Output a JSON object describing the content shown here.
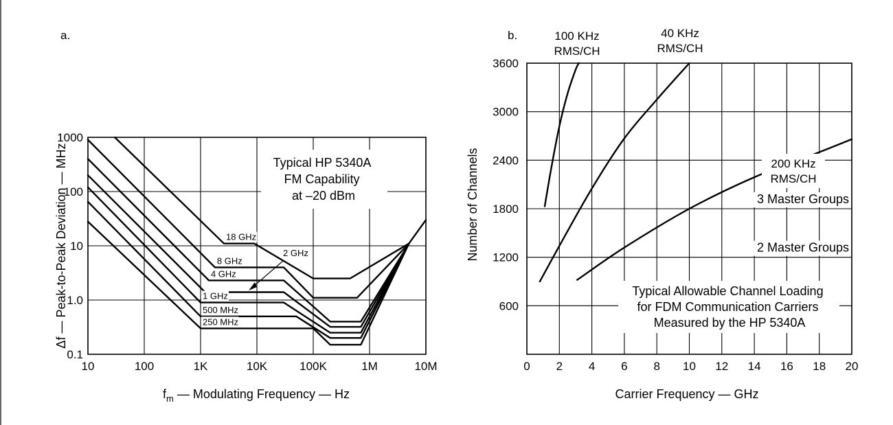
{
  "chart_data": [
    {
      "type": "line",
      "panel_label": "a.",
      "xlabel": "fₘ — Modulating Frequency — Hz",
      "xlabel_main": "f",
      "xlabel_sub": "m",
      "xlabel_rest": " — Modulating Frequency — Hz",
      "ylabel": "Δf — Peak-to-Peak Deviation — MHz",
      "x_scale": "log",
      "y_scale": "log",
      "xlim": [
        10,
        10000000
      ],
      "ylim": [
        0.1,
        1000
      ],
      "grid": true,
      "x_ticks": [
        {
          "value": 10,
          "label": "10"
        },
        {
          "value": 100,
          "label": "100"
        },
        {
          "value": 1000,
          "label": "1K"
        },
        {
          "value": 10000,
          "label": "10K"
        },
        {
          "value": 100000,
          "label": "100K"
        },
        {
          "value": 1000000,
          "label": "1M"
        },
        {
          "value": 10000000,
          "label": "10M"
        }
      ],
      "y_ticks": [
        {
          "value": 0.1,
          "label": "0.1"
        },
        {
          "value": 1,
          "label": "1.0"
        },
        {
          "value": 10,
          "label": "10"
        },
        {
          "value": 100,
          "label": "100"
        },
        {
          "value": 1000,
          "label": "1000"
        }
      ],
      "annotation": [
        "Typical HP 5340A",
        "FM Capability",
        "at –20 dBm"
      ],
      "series": [
        {
          "name": "18 GHz",
          "points": [
            [
              30,
              1000
            ],
            [
              2600,
              11
            ],
            [
              9000,
              11
            ],
            [
              100000,
              2.5
            ],
            [
              450000,
              2.5
            ],
            [
              5000000,
              11
            ]
          ]
        },
        {
          "name": "8 GHz",
          "points": [
            [
              10,
              900
            ],
            [
              1800,
              4
            ],
            [
              30000,
              4
            ],
            [
              100000,
              1.1
            ],
            [
              600000,
              1.1
            ],
            [
              5000000,
              11
            ]
          ]
        },
        {
          "name": "4 GHz",
          "points": [
            [
              10,
              400
            ],
            [
              1400,
              2.3
            ],
            [
              30000,
              2.3
            ],
            [
              200000,
              0.4
            ],
            [
              700000,
              0.4
            ],
            [
              5000000,
              11
            ]
          ]
        },
        {
          "name": "2 GHz",
          "points": [
            [
              10,
              200
            ],
            [
              1200,
              1.4
            ],
            [
              30000,
              1.4
            ],
            [
              200000,
              0.32
            ],
            [
              700000,
              0.32
            ],
            [
              5000000,
              11
            ]
          ]
        },
        {
          "name": "1 GHz",
          "points": [
            [
              10,
              120
            ],
            [
              1000,
              0.9
            ],
            [
              30000,
              0.9
            ],
            [
              200000,
              0.25
            ],
            [
              700000,
              0.25
            ],
            [
              5000000,
              11
            ]
          ]
        },
        {
          "name": "500 MHz",
          "points": [
            [
              10,
              65
            ],
            [
              1000,
              0.5
            ],
            [
              50000,
              0.5
            ],
            [
              200000,
              0.2
            ],
            [
              700000,
              0.2
            ],
            [
              5000000,
              11
            ]
          ]
        },
        {
          "name": "250 MHz",
          "points": [
            [
              10,
              28
            ],
            [
              1000,
              0.3
            ],
            [
              100000,
              0.3
            ],
            [
              200000,
              0.15
            ],
            [
              700000,
              0.15
            ],
            [
              5000000,
              11
            ]
          ]
        },
        {
          "name": "",
          "points": [
            [
              5000000,
              11
            ],
            [
              10000000,
              30
            ]
          ]
        }
      ]
    },
    {
      "type": "line",
      "panel_label": "b.",
      "xlabel": "Carrier Frequency — GHz",
      "ylabel": "Number of Channels",
      "xlim": [
        0,
        20
      ],
      "ylim": [
        0,
        3600
      ],
      "grid": true,
      "x_ticks": [
        0,
        2,
        4,
        6,
        8,
        10,
        12,
        14,
        16,
        18,
        20
      ],
      "y_ticks": [
        600,
        1200,
        1800,
        2400,
        3000,
        3600
      ],
      "x_tick_labels": [
        "0",
        "2",
        "4",
        "6",
        "8",
        "10",
        "12",
        "14",
        "16",
        "18",
        "20"
      ],
      "y_tick_labels": [
        "600",
        "1200",
        "1800",
        "2400",
        "3000",
        "3600"
      ],
      "reference_lines": [
        {
          "label": "3 Master Groups",
          "y": 1800
        },
        {
          "label": "2 Master Groups",
          "y": 1200
        }
      ],
      "annotation": [
        "Typical Allowable Channel Loading",
        "for FDM Communication Carriers",
        "Measured by the HP 5340A"
      ],
      "series": [
        {
          "name": [
            "100 KHz",
            "RMS/CH"
          ],
          "points": [
            [
              1.1,
              1830
            ],
            [
              1.5,
              2300
            ],
            [
              2,
              2820
            ],
            [
              2.5,
              3220
            ],
            [
              3,
              3520
            ],
            [
              3.2,
              3600
            ]
          ]
        },
        {
          "name": [
            "40 KHz",
            "RMS/CH"
          ],
          "points": [
            [
              0.8,
              900
            ],
            [
              2,
              1340
            ],
            [
              4,
              2050
            ],
            [
              6,
              2670
            ],
            [
              8,
              3150
            ],
            [
              10,
              3600
            ]
          ]
        },
        {
          "name": [
            "200 KHz",
            "RMS/CH"
          ],
          "points": [
            [
              3.1,
              920
            ],
            [
              6,
              1320
            ],
            [
              10,
              1800
            ],
            [
              14,
              2190
            ],
            [
              18,
              2500
            ],
            [
              20,
              2660
            ]
          ]
        }
      ]
    }
  ]
}
